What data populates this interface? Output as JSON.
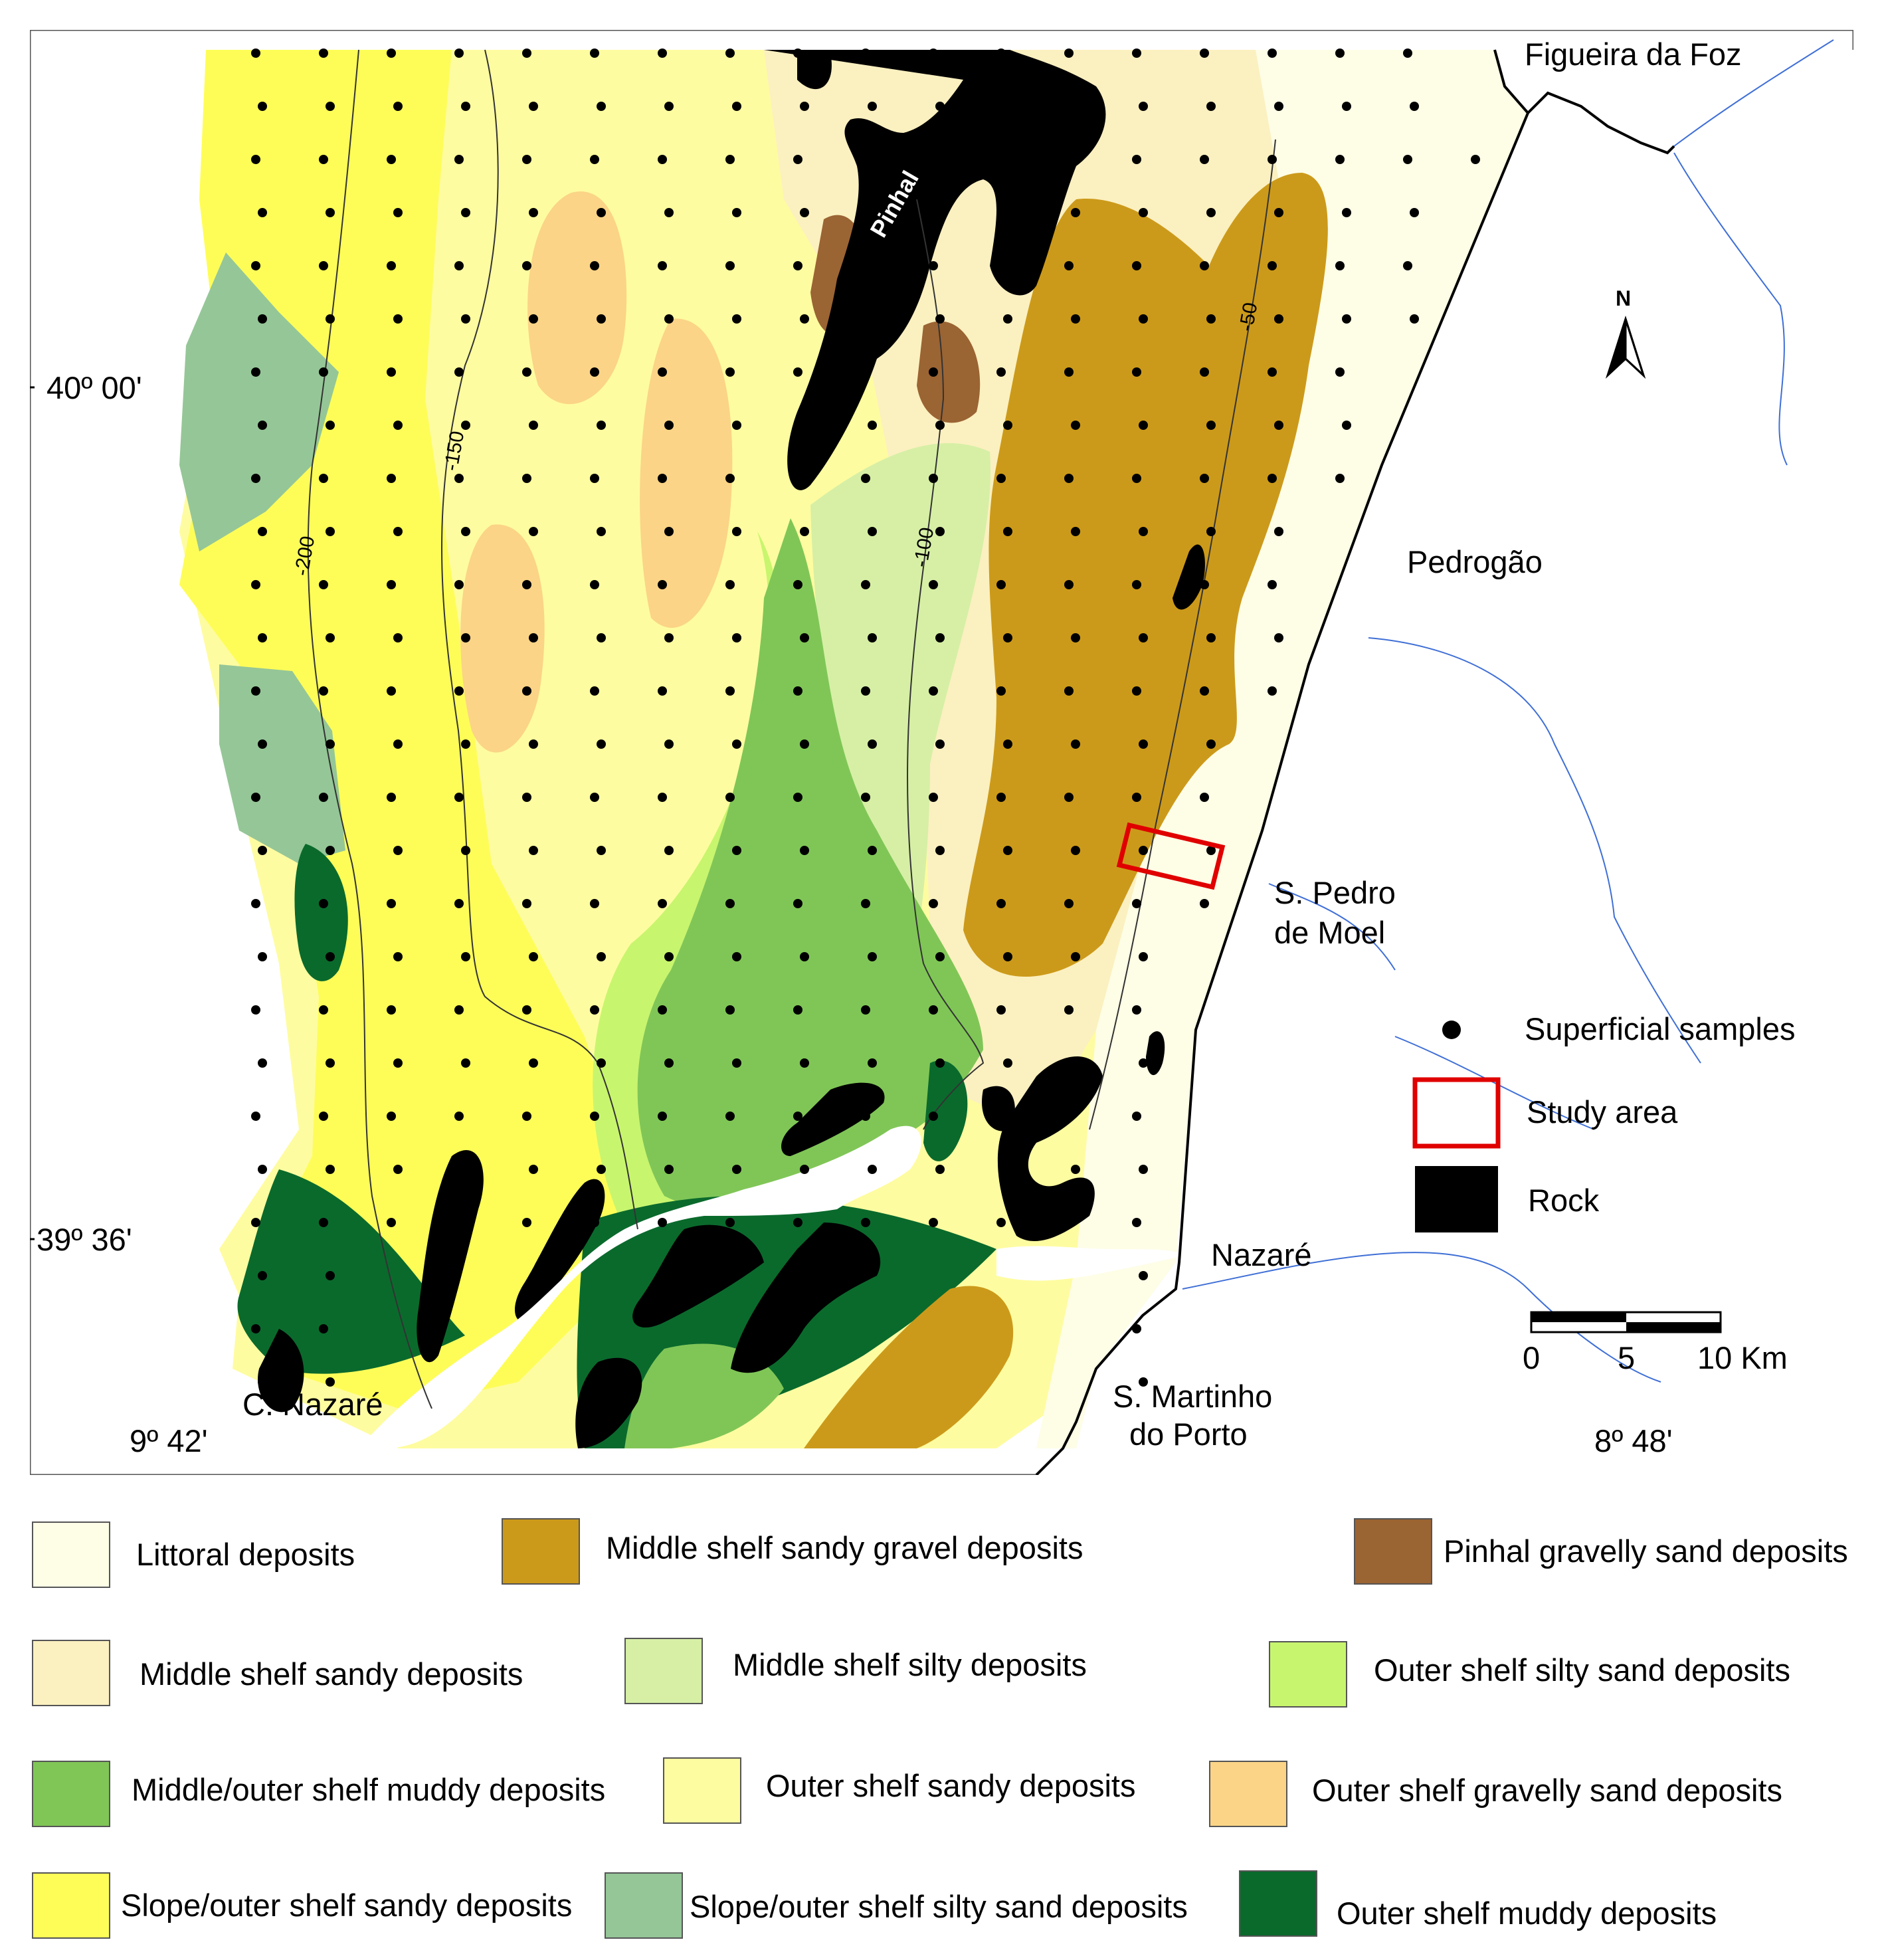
{
  "map": {
    "places": {
      "figueira": "Figueira da Foz",
      "pedrogao": "Pedrogão",
      "spedro_1": "S. Pedro",
      "spedro_2": "de Moel",
      "nazare": "Nazaré",
      "cnazare": "C. Nazaré",
      "smartinho_1": "S. Martinho",
      "smartinho_2": "do Porto",
      "pinhal": "Pinhal"
    },
    "coords": {
      "lat_north": "40º 00'",
      "lat_south": "39º 36'",
      "lon_west": "9º 42'",
      "lon_east": "8º 48'"
    },
    "contours": [
      "-200",
      "-150",
      "-100",
      "-50"
    ],
    "north_label": "N",
    "map_legend": {
      "samples": "Superficial samples",
      "study_area": "Study area",
      "rock": "Rock"
    },
    "scale": {
      "labels": [
        "0",
        "5",
        "10 Km"
      ]
    }
  },
  "colors": {
    "littoral": "#fefde6",
    "middle_sandy_gravel": "#cc9a1a",
    "pinhal_gravelly": "#9b6433",
    "middle_sandy": "#fbf0c0",
    "middle_silty": "#d6efa5",
    "outer_silty_sand": "#c8f56e",
    "middle_outer_muddy": "#80c657",
    "outer_sandy": "#fefca0",
    "outer_gravelly_sand": "#fbd487",
    "slope_sandy": "#fefd58",
    "slope_silty_sand": "#95c697",
    "outer_muddy": "#0a6a2c",
    "rock": "#000000",
    "study_area": "#e00000",
    "river": "#3f6fd6"
  },
  "legend": [
    {
      "label": "Littoral deposits",
      "color": "#fefde6"
    },
    {
      "label": "Middle shelf sandy gravel deposits",
      "color": "#cc9a1a"
    },
    {
      "label": "Pinhal gravelly sand deposits",
      "color": "#9b6433"
    },
    {
      "label": "Middle shelf sandy deposits",
      "color": "#fbf0c0"
    },
    {
      "label": "Middle shelf silty deposits",
      "color": "#d6efa5"
    },
    {
      "label": "Outer shelf silty sand deposits",
      "color": "#c8f56e"
    },
    {
      "label": "Middle/outer shelf muddy deposits",
      "color": "#80c657"
    },
    {
      "label": "Outer shelf sandy deposits",
      "color": "#fefca0"
    },
    {
      "label": "Outer shelf gravelly sand deposits",
      "color": "#fbd487"
    },
    {
      "label": "Slope/outer shelf sandy deposits",
      "color": "#fefd58"
    },
    {
      "label": "Slope/outer shelf silty sand deposits",
      "color": "#95c697"
    },
    {
      "label": "Outer shelf muddy deposits",
      "color": "#0a6a2c"
    }
  ]
}
